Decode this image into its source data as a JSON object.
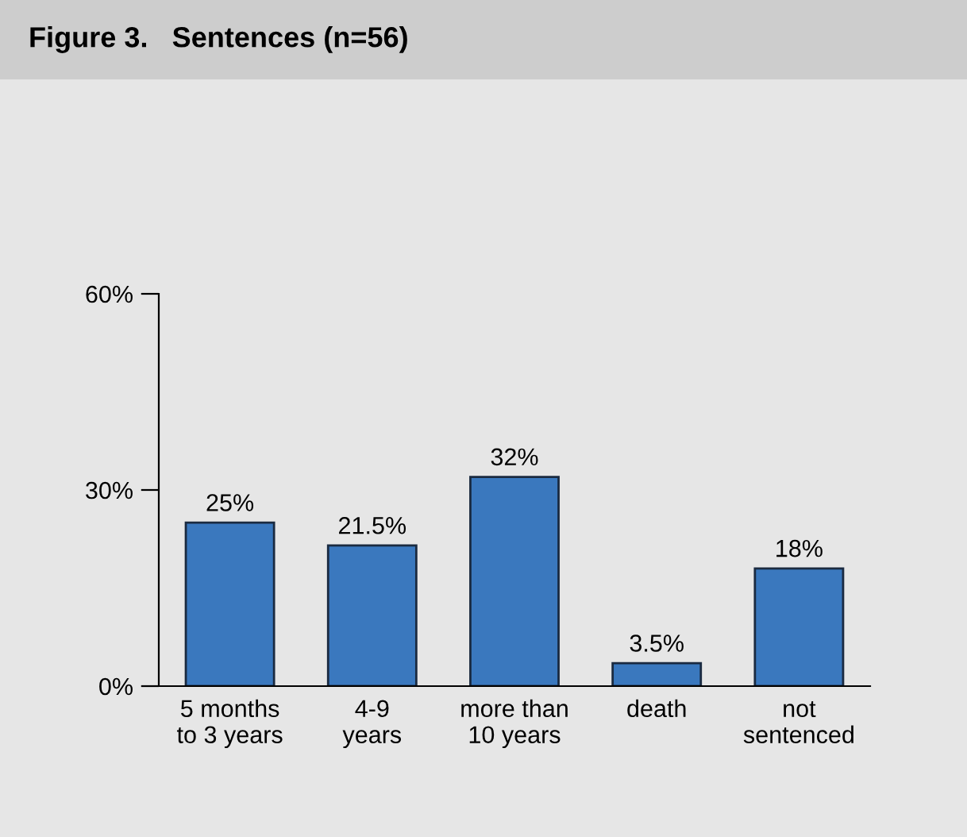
{
  "chart_data": {
    "type": "bar",
    "title": "Figure 3.   Sentences (n=56)",
    "categories": [
      "5 months\nto 3 years",
      "4-9\nyears",
      "more than\n10 years",
      "death",
      "not\nsentenced"
    ],
    "values": [
      25,
      21.5,
      32,
      3.5,
      18
    ],
    "value_labels": [
      "25%",
      "21.5%",
      "32%",
      "3.5%",
      "18%"
    ],
    "color": "#3a78be",
    "ylim": [
      0,
      60
    ],
    "yticks": [
      {
        "value": 0,
        "label": "0%"
      },
      {
        "value": 30,
        "label": "30%"
      },
      {
        "value": 60,
        "label": "60%"
      }
    ],
    "grid": false,
    "legend": false
  }
}
